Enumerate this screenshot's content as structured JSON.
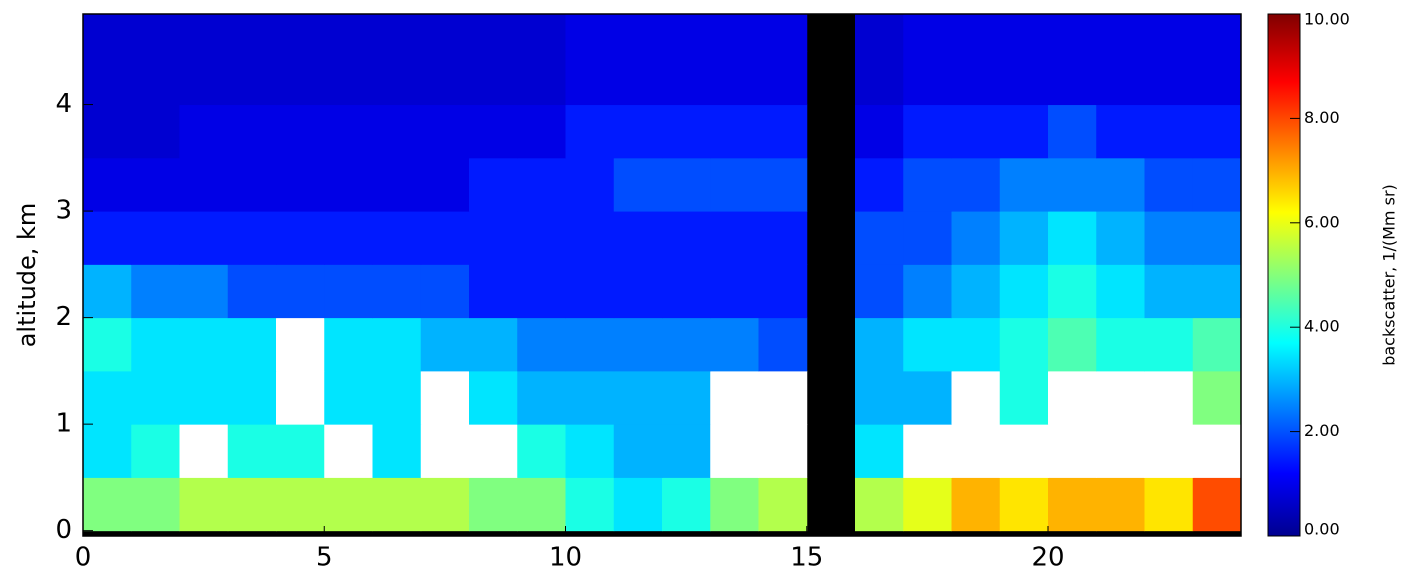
{
  "chart_data": {
    "type": "heatmap",
    "y_label": "altitude, km",
    "xlim": [
      0,
      24
    ],
    "xticks": [
      0,
      5,
      10,
      15,
      20
    ],
    "ylim": [
      -0.05,
      4.85
    ],
    "yticks": [
      0,
      1,
      2,
      3,
      4
    ],
    "x_edges": [
      0,
      1,
      2,
      3,
      4,
      5,
      6,
      7,
      8,
      9,
      10,
      11,
      12,
      13,
      14,
      15,
      16,
      17,
      18,
      19,
      20,
      21,
      22,
      23,
      24
    ],
    "y_edges": [
      0,
      0.5,
      1,
      1.5,
      2,
      2.5,
      3,
      3.5,
      4,
      4.5,
      5
    ],
    "z": [
      [
        5,
        5,
        5.5,
        5.5,
        5.5,
        5.5,
        5.5,
        5.5,
        5,
        5,
        4,
        3.5,
        4,
        5,
        5.5,
        null,
        5.5,
        6,
        7,
        6.5,
        7,
        7,
        6.5,
        8
      ],
      [
        3.5,
        4,
        12,
        4,
        4,
        12,
        3.5,
        12,
        12,
        4,
        3.5,
        3,
        3,
        12,
        12,
        null,
        3.5,
        12,
        12,
        12,
        12,
        12,
        12,
        12
      ],
      [
        3.5,
        3.5,
        3.5,
        3.5,
        12,
        3.5,
        3.5,
        12,
        3.5,
        3,
        3,
        3,
        3,
        12,
        12,
        null,
        3,
        3,
        12,
        4,
        12,
        12,
        12,
        5
      ],
      [
        4,
        3.5,
        3.5,
        3.5,
        12,
        3.5,
        3.5,
        3,
        3,
        2.5,
        2.5,
        2.5,
        2.5,
        2.5,
        2,
        null,
        3,
        3.5,
        3.5,
        4,
        4.5,
        4,
        4,
        4.5
      ],
      [
        3,
        2.5,
        2.5,
        2,
        2,
        2,
        2,
        2,
        1.5,
        1.5,
        1.5,
        1.5,
        1.5,
        1.5,
        1.5,
        null,
        2,
        2.5,
        3,
        3.5,
        4,
        3.5,
        3,
        3
      ],
      [
        1.5,
        1.5,
        1.5,
        1.5,
        1.5,
        1.5,
        1.5,
        1.5,
        1.5,
        1.5,
        1.5,
        1.5,
        1.5,
        1.5,
        1.5,
        null,
        2,
        2,
        2.5,
        3,
        3.5,
        3,
        2.5,
        2.5
      ],
      [
        1,
        1,
        1,
        1,
        1,
        1,
        1,
        1,
        1.5,
        1.5,
        1.5,
        2,
        2,
        2,
        2,
        null,
        1.5,
        2,
        2,
        2.5,
        2.5,
        2.5,
        2,
        2
      ],
      [
        0.8,
        0.8,
        1,
        1,
        1,
        1,
        1,
        1,
        1,
        1,
        1.5,
        1.5,
        1.5,
        1.5,
        1.5,
        null,
        1,
        1.5,
        1.5,
        1.5,
        2,
        1.5,
        1.5,
        1.5
      ],
      [
        0.8,
        0.8,
        0.8,
        0.8,
        0.8,
        0.8,
        0.8,
        0.8,
        0.8,
        0.8,
        1,
        1,
        1,
        1,
        1,
        null,
        0.8,
        1,
        1,
        1,
        1,
        1,
        1,
        1
      ],
      [
        0.8,
        0.8,
        0.8,
        0.8,
        0.8,
        0.8,
        0.8,
        0.8,
        0.8,
        0.8,
        1,
        1,
        1,
        1,
        1,
        null,
        0.8,
        1,
        1,
        1,
        1,
        1,
        1,
        1
      ]
    ],
    "colorbar_label": "backscatter, 1/(Mm sr)",
    "zlim": [
      0,
      10
    ],
    "zticks": [
      {
        "value": 0,
        "label": "0.00"
      },
      {
        "value": 2,
        "label": "2.00"
      },
      {
        "value": 4,
        "label": "4.00"
      },
      {
        "value": 6,
        "label": "6.00"
      },
      {
        "value": 8,
        "label": "8.00"
      },
      {
        "value": 10,
        "label": "10.00"
      }
    ]
  }
}
